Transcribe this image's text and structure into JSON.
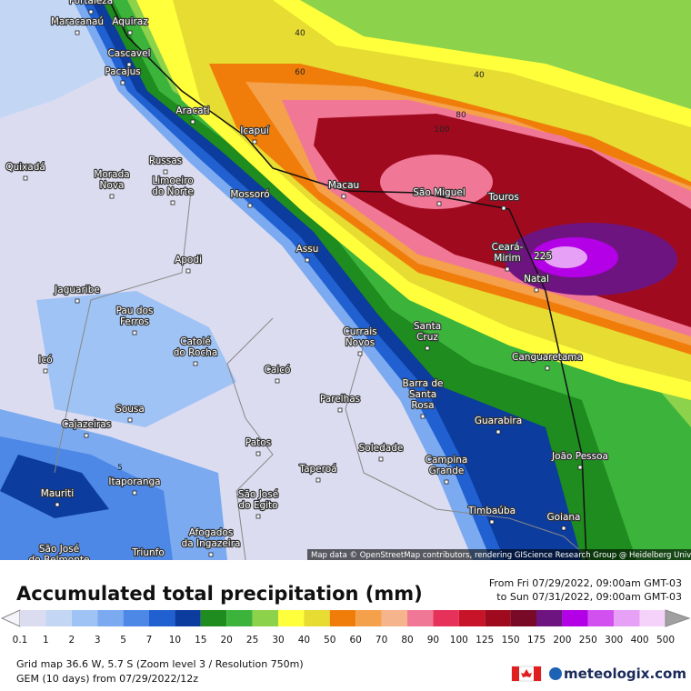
{
  "map": {
    "cities": [
      {
        "lines": [
          "Fortaleza"
        ]
      },
      {
        "lines": [
          "Maracanaú"
        ]
      },
      {
        "lines": [
          "Aquiraz"
        ]
      },
      {
        "lines": [
          "Cascavel"
        ]
      },
      {
        "lines": [
          "Pacajus"
        ]
      },
      {
        "lines": [
          "Aracati"
        ]
      },
      {
        "lines": [
          "Icapuí"
        ]
      },
      {
        "lines": [
          "Quixadá"
        ]
      },
      {
        "lines": [
          "Russas"
        ]
      },
      {
        "lines": [
          "Morada",
          "Nova"
        ]
      },
      {
        "lines": [
          "Limoeiro",
          "do Norte"
        ]
      },
      {
        "lines": [
          "Mossoró"
        ]
      },
      {
        "lines": [
          "Macau"
        ]
      },
      {
        "lines": [
          "São Miguel"
        ]
      },
      {
        "lines": [
          "Touros"
        ]
      },
      {
        "lines": [
          "Ceará-",
          "Mirim"
        ]
      },
      {
        "lines": [
          "Natal"
        ]
      },
      {
        "lines": [
          "Assu"
        ]
      },
      {
        "lines": [
          "Apodi"
        ]
      },
      {
        "lines": [
          "Jaguaribe"
        ]
      },
      {
        "lines": [
          "Pau dos",
          "Ferros"
        ]
      },
      {
        "lines": [
          "Catolé",
          "do Rocha"
        ]
      },
      {
        "lines": [
          "Currais",
          "Novos"
        ]
      },
      {
        "lines": [
          "Santa",
          "Cruz"
        ]
      },
      {
        "lines": [
          "Canguaretama"
        ]
      },
      {
        "lines": [
          "Icó"
        ]
      },
      {
        "lines": [
          "Caicó"
        ]
      },
      {
        "lines": [
          "Barra de",
          "Santa",
          "Rosa"
        ]
      },
      {
        "lines": [
          "Parelhas"
        ]
      },
      {
        "lines": [
          "Sousa"
        ]
      },
      {
        "lines": [
          "Guarabira"
        ]
      },
      {
        "lines": [
          "Cajazeiras"
        ]
      },
      {
        "lines": [
          "Patos"
        ]
      },
      {
        "lines": [
          "Soledade"
        ]
      },
      {
        "lines": [
          "João Pessoa"
        ]
      },
      {
        "lines": [
          "Campina",
          "Grande"
        ]
      },
      {
        "lines": [
          "Taperoá"
        ]
      },
      {
        "lines": [
          "Itaporanga"
        ]
      },
      {
        "lines": [
          "Mauriti"
        ]
      },
      {
        "lines": [
          "São José",
          "do Egito"
        ]
      },
      {
        "lines": [
          "Timbaúba"
        ]
      },
      {
        "lines": [
          "Goiana"
        ]
      },
      {
        "lines": [
          "Afogados",
          "da Ingazeira"
        ]
      },
      {
        "lines": [
          "São José",
          "do Belmonte"
        ]
      },
      {
        "lines": [
          "Triunfo"
        ]
      }
    ],
    "contour_labels": [
      "40",
      "60",
      "40",
      "80",
      "100",
      "5"
    ],
    "peak_label": "225",
    "attribution": "Map data © OpenStreetMap contributors, rendering GIScience Research Group @ Heidelberg University"
  },
  "legend": {
    "title": "Accumulated total precipitation (mm)",
    "time_from": "From Fri 07/29/2022, 09:00am GMT-03",
    "time_to": "to Sun 07/31/2022, 09:00am GMT-03",
    "labels": [
      "0.1",
      "1",
      "2",
      "3",
      "5",
      "7",
      "10",
      "15",
      "20",
      "25",
      "30",
      "40",
      "50",
      "60",
      "70",
      "80",
      "90",
      "100",
      "125",
      "150",
      "175",
      "200",
      "250",
      "300",
      "400",
      "500"
    ],
    "colors": [
      "#dcdcf0",
      "#c3d7f5",
      "#9fc3f5",
      "#7baaf0",
      "#4d88e6",
      "#2060d0",
      "#0c3c9e",
      "#1e8c1e",
      "#3cb43c",
      "#8cd24a",
      "#ffff3c",
      "#e6dc32",
      "#f07d0a",
      "#f5a04a",
      "#f5b48c",
      "#f07896",
      "#e6325a",
      "#c81428",
      "#a00a1e",
      "#780a28",
      "#6e1480",
      "#b400e6",
      "#d250f0",
      "#e6a0f5",
      "#f5d2fa"
    ]
  },
  "footer": {
    "grid_info": "Grid map 36.6 W, 5.7 S (Zoom level 3 / Resolution 750m)",
    "model_info": "GEM (10 days) from 07/29/2022/12z",
    "brand": "meteologix.com"
  }
}
